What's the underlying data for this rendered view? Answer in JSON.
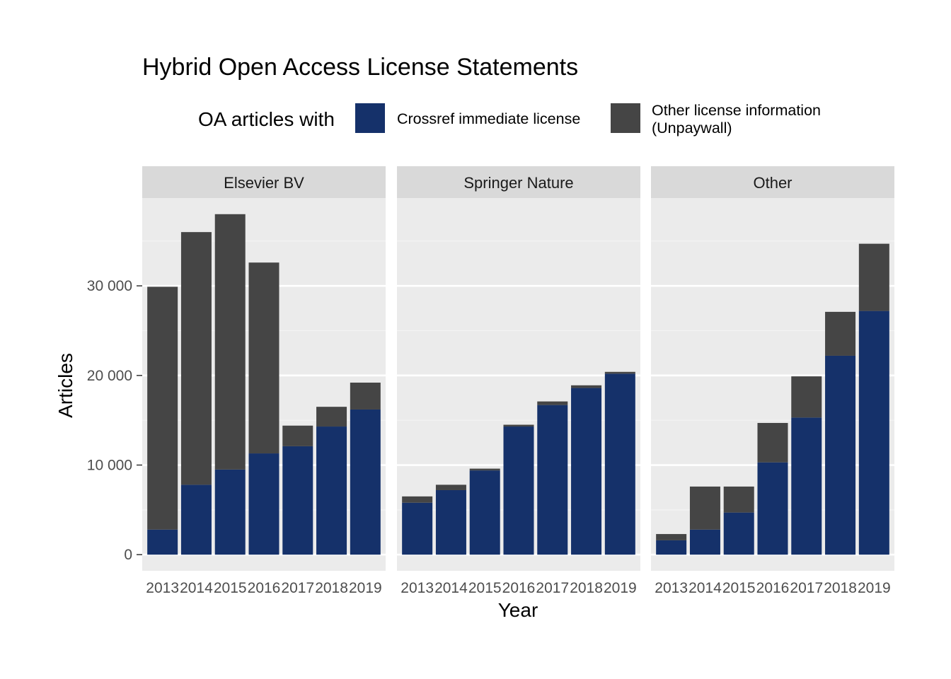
{
  "chart_data": {
    "type": "bar",
    "stacked": true,
    "title": "Hybrid Open Access License Statements",
    "xlabel": "Year",
    "ylabel": "Articles",
    "ylim": [
      -1800,
      39800
    ],
    "yticks": [
      0,
      10000,
      20000,
      30000
    ],
    "ytick_labels": [
      "0",
      "10 000",
      "20 000",
      "30 000"
    ],
    "grid": true,
    "legend": {
      "title": "OA articles with",
      "position": "top",
      "items": [
        {
          "label": "Crossref immediate license",
          "color": "#15316a"
        },
        {
          "label_lines": [
            "Other license information",
            "(Unpaywall)"
          ],
          "color": "#454545"
        }
      ]
    },
    "categories": [
      "2013",
      "2014",
      "2015",
      "2016",
      "2017",
      "2018",
      "2019"
    ],
    "facets": [
      {
        "name": "Elsevier BV",
        "series": [
          {
            "values": [
              2800,
              7800,
              9500,
              11300,
              12100,
              14300,
              16200
            ]
          },
          {
            "values": [
              27100,
              28200,
              28500,
              21300,
              2300,
              2200,
              3000
            ]
          }
        ]
      },
      {
        "name": "Springer Nature",
        "series": [
          {
            "values": [
              5800,
              7200,
              9400,
              14300,
              16700,
              18600,
              20200
            ]
          },
          {
            "values": [
              700,
              600,
              200,
              200,
              400,
              300,
              200
            ]
          }
        ]
      },
      {
        "name": "Other",
        "series": [
          {
            "values": [
              1600,
              2800,
              4700,
              10300,
              15300,
              22200,
              27200
            ]
          },
          {
            "values": [
              700,
              4800,
              2900,
              4400,
              4600,
              4900,
              7500
            ]
          }
        ]
      }
    ]
  }
}
